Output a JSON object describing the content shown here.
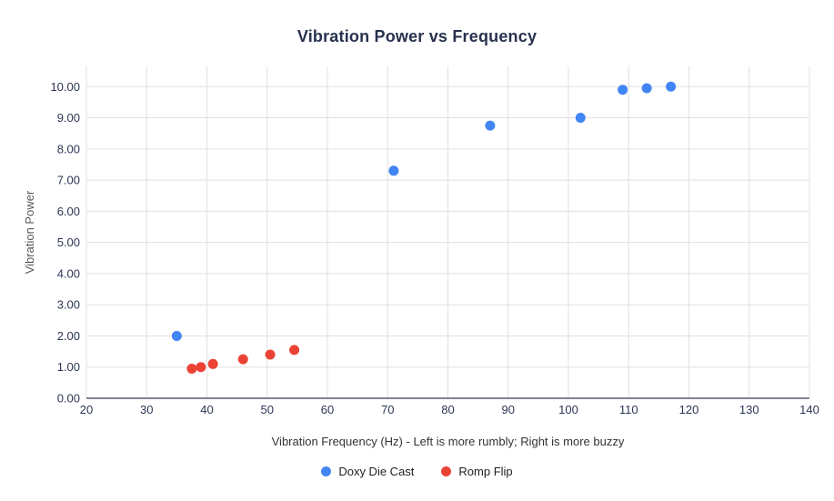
{
  "chart_data": {
    "type": "scatter",
    "title": "Vibration Power vs Frequency",
    "xlabel": "Vibration Frequency (Hz) - Left is more rumbly; Right is more buzzy",
    "ylabel": "Vibration Power",
    "xlim": [
      20,
      140
    ],
    "ylim": [
      0,
      10.65
    ],
    "xticks": [
      20,
      30,
      40,
      50,
      60,
      70,
      80,
      90,
      100,
      110,
      120,
      130,
      140
    ],
    "xtick_labels": [
      "20",
      "30",
      "40",
      "50",
      "60",
      "70",
      "80",
      "90",
      "100",
      "110",
      "120",
      "130",
      "140"
    ],
    "yticks": [
      0,
      1,
      2,
      3,
      4,
      5,
      6,
      7,
      8,
      9,
      10
    ],
    "ytick_labels": [
      "0.00",
      "1.00",
      "2.00",
      "3.00",
      "4.00",
      "5.00",
      "6.00",
      "7.00",
      "8.00",
      "9.00",
      "10.00"
    ],
    "grid": true,
    "legend_position": "bottom",
    "series": [
      {
        "name": "Doxy Die Cast",
        "color": "#4285F4",
        "points": [
          [
            35,
            2.0
          ],
          [
            71,
            7.3
          ],
          [
            87,
            8.75
          ],
          [
            102,
            9.0
          ],
          [
            109,
            9.9
          ],
          [
            113,
            9.95
          ],
          [
            117,
            10.0
          ]
        ]
      },
      {
        "name": "Romp Flip",
        "color": "#EA4335",
        "points": [
          [
            37.5,
            0.95
          ],
          [
            39,
            1.0
          ],
          [
            41,
            1.1
          ],
          [
            46,
            1.25
          ],
          [
            50.5,
            1.4
          ],
          [
            54.5,
            1.55
          ]
        ]
      }
    ]
  },
  "colors": {
    "title_text": "#28324e",
    "tick_text": "#2c3654",
    "axis_title_y": "#575757",
    "axis_title_x": "#333333",
    "legend_text": "#1f1f1f",
    "gridline": "#e0e0e0",
    "axis_line": "#333b4f",
    "background": "#ffffff"
  }
}
